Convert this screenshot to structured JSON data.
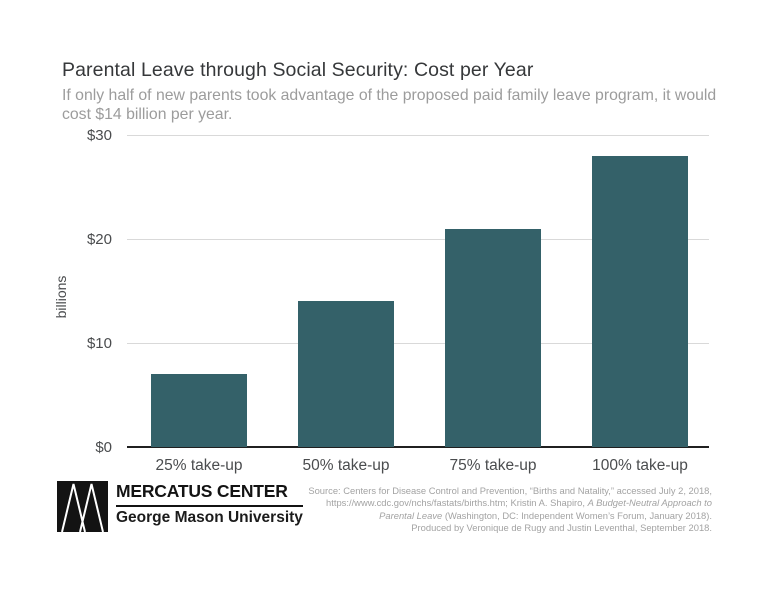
{
  "page": {
    "background": "#ffffff"
  },
  "header": {
    "title": "Parental Leave through Social Security: Cost per Year",
    "subtitle": "If only half of new parents took advantage of the proposed paid family leave program, it would cost $14 billion per year."
  },
  "chart_data": {
    "type": "bar",
    "title": "Parental Leave through Social Security: Cost per Year",
    "subtitle": "If only half of new parents took advantage of the proposed paid family leave program, it would cost $14 billion per year.",
    "categories": [
      "25% take-up",
      "50% take-up",
      "75% take-up",
      "100% take-up"
    ],
    "values": [
      7,
      14,
      21,
      28
    ],
    "xlabel": "",
    "ylabel": "billions",
    "ylim": [
      0,
      30
    ],
    "yticks": [
      {
        "label": "$30",
        "value": 30
      },
      {
        "label": "$20",
        "value": 20
      },
      {
        "label": "$10",
        "value": 10
      },
      {
        "label": "$0",
        "value": 0
      }
    ],
    "grid": true,
    "legend": "none",
    "bar_color": "#346169",
    "gridline_color": "#d9d9d9",
    "axis_color": "#202020"
  },
  "footer": {
    "logo": {
      "mark": "mercatus-triangles-logo",
      "org": "MERCATUS CENTER",
      "sub": "George Mason University"
    },
    "source_lines": [
      [
        {
          "t": "Source: Centers for Disease Control and Prevention, “Births and Natality,” accessed July 2, 2018,"
        }
      ],
      [
        {
          "t": "https://www.cdc.gov/nchs/fastats/births.htm; Kristin A. Shapiro, "
        },
        {
          "t": "A Budget-Neutral Approach to",
          "i": true
        }
      ],
      [
        {
          "t": "Parental Leave",
          "i": true
        },
        {
          "t": " (Washington, DC: Independent Women’s Forum, January 2018)."
        }
      ],
      [
        {
          "t": "Produced by Veronique de Rugy and Justin Leventhal, September 2018."
        }
      ]
    ]
  }
}
